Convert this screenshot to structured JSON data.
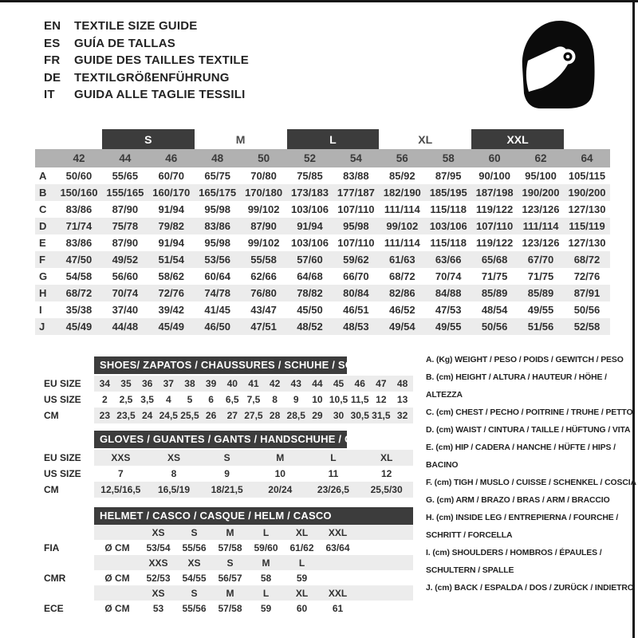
{
  "header": {
    "languages": [
      {
        "code": "EN",
        "text": "TEXTILE SIZE GUIDE"
      },
      {
        "code": "ES",
        "text": "GUÍA DE TALLAS"
      },
      {
        "code": "FR",
        "text": "GUIDE DES TAILLES TEXTILE"
      },
      {
        "code": "DE",
        "text": "TEXTILGRÖßENFÜHRUNG"
      },
      {
        "code": "IT",
        "text": "GUIDA ALLE TAGLIE TESSILI"
      }
    ],
    "helmet_icon": "racing-helmet-icon"
  },
  "main_table": {
    "size_groups": [
      {
        "label": "S",
        "boxed": true
      },
      {
        "label": "M",
        "boxed": false
      },
      {
        "label": "L",
        "boxed": true
      },
      {
        "label": "XL",
        "boxed": false
      },
      {
        "label": "XXL",
        "boxed": true
      }
    ],
    "eu_sizes": [
      "42",
      "44",
      "46",
      "48",
      "50",
      "52",
      "54",
      "56",
      "58",
      "60",
      "62",
      "64"
    ],
    "rows": [
      {
        "label": "A",
        "values": [
          "50/60",
          "55/65",
          "60/70",
          "65/75",
          "70/80",
          "75/85",
          "83/88",
          "85/92",
          "87/95",
          "90/100",
          "95/100",
          "105/115"
        ]
      },
      {
        "label": "B",
        "values": [
          "150/160",
          "155/165",
          "160/170",
          "165/175",
          "170/180",
          "173/183",
          "177/187",
          "182/190",
          "185/195",
          "187/198",
          "190/200",
          "190/200"
        ]
      },
      {
        "label": "C",
        "values": [
          "83/86",
          "87/90",
          "91/94",
          "95/98",
          "99/102",
          "103/106",
          "107/110",
          "111/114",
          "115/118",
          "119/122",
          "123/126",
          "127/130"
        ]
      },
      {
        "label": "D",
        "values": [
          "71/74",
          "75/78",
          "79/82",
          "83/86",
          "87/90",
          "91/94",
          "95/98",
          "99/102",
          "103/106",
          "107/110",
          "111/114",
          "115/119"
        ]
      },
      {
        "label": "E",
        "values": [
          "83/86",
          "87/90",
          "91/94",
          "95/98",
          "99/102",
          "103/106",
          "107/110",
          "111/114",
          "115/118",
          "119/122",
          "123/126",
          "127/130"
        ]
      },
      {
        "label": "F",
        "values": [
          "47/50",
          "49/52",
          "51/54",
          "53/56",
          "55/58",
          "57/60",
          "59/62",
          "61/63",
          "63/66",
          "65/68",
          "67/70",
          "68/72"
        ]
      },
      {
        "label": "G",
        "values": [
          "54/58",
          "56/60",
          "58/62",
          "60/64",
          "62/66",
          "64/68",
          "66/70",
          "68/72",
          "70/74",
          "71/75",
          "71/75",
          "72/76"
        ]
      },
      {
        "label": "H",
        "values": [
          "68/72",
          "70/74",
          "72/76",
          "74/78",
          "76/80",
          "78/82",
          "80/84",
          "82/86",
          "84/88",
          "85/89",
          "85/89",
          "87/91"
        ]
      },
      {
        "label": "I",
        "values": [
          "35/38",
          "37/40",
          "39/42",
          "41/45",
          "43/47",
          "45/50",
          "46/51",
          "46/52",
          "47/53",
          "48/54",
          "49/55",
          "50/56"
        ]
      },
      {
        "label": "J",
        "values": [
          "45/49",
          "44/48",
          "45/49",
          "46/50",
          "47/51",
          "48/52",
          "48/53",
          "49/54",
          "49/55",
          "50/56",
          "51/56",
          "52/58"
        ]
      }
    ]
  },
  "shoes": {
    "title": "SHOES/ ZAPATOS / CHAUSSURES / SCHUHE / SCARPE",
    "rows": [
      {
        "label": "EU SIZE",
        "values": [
          "34",
          "35",
          "36",
          "37",
          "38",
          "39",
          "40",
          "41",
          "42",
          "43",
          "44",
          "45",
          "46",
          "47",
          "48"
        ]
      },
      {
        "label": "US SIZE",
        "values": [
          "2",
          "2,5",
          "3,5",
          "4",
          "5",
          "6",
          "6,5",
          "7,5",
          "8",
          "9",
          "10",
          "10,5",
          "11,5",
          "12",
          "13"
        ]
      },
      {
        "label": "CM",
        "values": [
          "23",
          "23,5",
          "24",
          "24,5",
          "25,5",
          "26",
          "27",
          "27,5",
          "28",
          "28,5",
          "29",
          "30",
          "30,5",
          "31,5",
          "32"
        ]
      }
    ]
  },
  "gloves": {
    "title": "GLOVES / GUANTES / GANTS / HANDSCHUHE / GUANTI",
    "rows": [
      {
        "label": "EU SIZE",
        "values": [
          "XXS",
          "XS",
          "S",
          "M",
          "L",
          "XL"
        ]
      },
      {
        "label": "US SIZE",
        "values": [
          "7",
          "8",
          "9",
          "10",
          "11",
          "12"
        ]
      },
      {
        "label": "CM",
        "values": [
          "12,5/16,5",
          "16,5/19",
          "18/21,5",
          "20/24",
          "23/26,5",
          "25,5/30"
        ]
      }
    ]
  },
  "helmet": {
    "title": "HELMET / CASCO / CASQUE / HELM / CASCO",
    "rows": [
      {
        "kind": "sizes",
        "label": "",
        "cells": [
          "",
          "XS",
          "S",
          "M",
          "L",
          "XL",
          "XXL"
        ]
      },
      {
        "kind": "values",
        "label": "FIA",
        "cells": [
          "Ø CM",
          "53/54",
          "55/56",
          "57/58",
          "59/60",
          "61/62",
          "63/64"
        ]
      },
      {
        "kind": "sizes",
        "label": "",
        "cells": [
          "",
          "XXS",
          "XS",
          "S",
          "M",
          "L",
          ""
        ]
      },
      {
        "kind": "values",
        "label": "CMR",
        "cells": [
          "Ø CM",
          "52/53",
          "54/55",
          "56/57",
          "58",
          "59",
          ""
        ]
      },
      {
        "kind": "sizes",
        "label": "",
        "cells": [
          "",
          "XS",
          "S",
          "M",
          "L",
          "XL",
          "XXL"
        ]
      },
      {
        "kind": "values",
        "label": "ECE",
        "cells": [
          "Ø CM",
          "53",
          "55/56",
          "57/58",
          "59",
          "60",
          "61"
        ]
      }
    ]
  },
  "legend": {
    "items": [
      "A. (Kg) WEIGHT / PESO / POIDS / GEWITCH / PESO",
      "B. (cm) HEIGHT / ALTURA / HAUTEUR / HÖHE / ALTEZZA",
      "C. (cm) CHEST / PECHO / POITRINE / TRUHE / PETTO",
      "D. (cm) WAIST / CINTURA / TAILLE / HÜFTUNG / VITA",
      "E. (cm) HIP / CADERA / HANCHE / HÜFTE / HIPS / BACINO",
      "F. (cm) TIGH / MUSLO / CUISSE / SCHENKEL / COSCIA",
      "G. (cm) ARM / BRAZO / BRAS / ARM / BRACCIO",
      "H. (cm) INSIDE LEG / ENTREPIERNA / FOURCHE /\nSCHRITT / FORCELLA",
      "I. (cm) SHOULDERS / HOMBROS / ÉPAULES /\nSCHULTERN / SPALLE",
      "J. (cm) BACK / ESPALDA / DOS / ZURÜCK / INDIETRO"
    ]
  },
  "colors": {
    "dark_bar": "#3c3c3c",
    "band_medium": "#b1b1b1",
    "band_light": "#ececec",
    "border": "#161616",
    "text": "#303030"
  }
}
